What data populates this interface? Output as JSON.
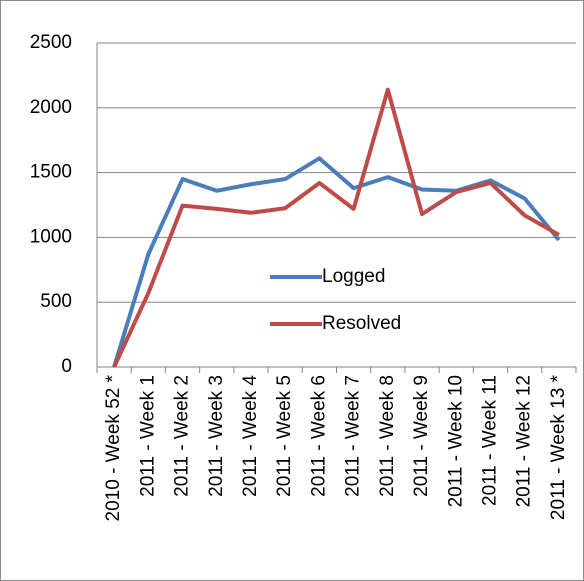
{
  "chart_data": {
    "type": "line",
    "categories": [
      "2010 - Week 52 *",
      "2011 - Week 1",
      "2011 - Week 2",
      "2011 - Week 3",
      "2011 - Week 4",
      "2011 - Week 5",
      "2011 - Week 6",
      "2011 - Week 7",
      "2011 - Week 8",
      "2011 - Week 9",
      "2011 - Week 10",
      "2011 - Week 11",
      "2011 - Week 12",
      "2011 - Week 13 *"
    ],
    "series": [
      {
        "name": "Logged",
        "color": "#4a7ebb",
        "values": [
          0,
          870,
          1450,
          1360,
          1410,
          1450,
          1610,
          1380,
          1465,
          1370,
          1360,
          1440,
          1300,
          980
        ]
      },
      {
        "name": "Resolved",
        "color": "#be4b48",
        "values": [
          0,
          570,
          1245,
          1220,
          1190,
          1225,
          1420,
          1220,
          2140,
          1180,
          1350,
          1420,
          1170,
          1020
        ]
      }
    ],
    "ylim": [
      0,
      2500
    ],
    "yticks": [
      0,
      500,
      1000,
      1500,
      2000,
      2500
    ],
    "grid": true
  }
}
